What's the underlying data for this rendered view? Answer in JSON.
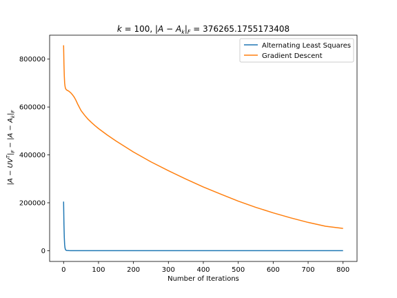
{
  "chart_data": {
    "type": "line",
    "title": "k = 100, |A − A_k|_F = 376265.1755173408",
    "title_parts": {
      "k_label": "k",
      "k_value": "100",
      "norm_label": "|A − A",
      "norm_sub": "k",
      "norm_tail": "|",
      "norm_sub2": "F",
      "norm_value": "376265.1755173408"
    },
    "xlabel": "Number of Iterations",
    "ylabel_parts": {
      "a": "|A − UV",
      "sup": "T",
      "b": "|",
      "sub1": "F",
      "c": " − |A − A",
      "sub2": "k",
      "d": "|",
      "sub3": "F"
    },
    "xlim": [
      -40,
      840
    ],
    "ylim": [
      -45000,
      900000
    ],
    "xticks": [
      0,
      100,
      200,
      300,
      400,
      500,
      600,
      700,
      800
    ],
    "yticks": [
      0,
      200000,
      400000,
      600000,
      800000
    ],
    "legend_position": "upper right",
    "grid": false,
    "series": [
      {
        "name": "Alternating Least Squares",
        "color": "#1f77b4",
        "x": [
          0,
          1,
          2,
          3,
          4,
          5,
          6,
          8,
          10,
          15,
          20,
          30,
          50,
          100,
          200,
          300,
          400,
          500,
          600,
          700,
          800
        ],
        "y": [
          205000,
          110000,
          55000,
          25000,
          12000,
          6000,
          3000,
          1200,
          600,
          200,
          80,
          30,
          15,
          10,
          8,
          7,
          6,
          5,
          5,
          4,
          4
        ]
      },
      {
        "name": "Gradient Descent",
        "color": "#ff7f0e",
        "x": [
          0,
          1,
          2,
          3,
          4,
          5,
          6,
          8,
          10,
          15,
          20,
          25,
          30,
          35,
          40,
          50,
          60,
          70,
          80,
          90,
          100,
          125,
          150,
          175,
          200,
          250,
          300,
          350,
          400,
          450,
          500,
          550,
          600,
          650,
          700,
          750,
          800
        ],
        "y": [
          858000,
          780000,
          730000,
          700000,
          688000,
          680000,
          676000,
          672000,
          670000,
          666000,
          660000,
          652000,
          642000,
          629000,
          613000,
          585000,
          566000,
          549000,
          535000,
          522000,
          510000,
          483000,
          458000,
          435000,
          412000,
          371000,
          334000,
          299000,
          266000,
          236000,
          207000,
          181000,
          158000,
          137000,
          118000,
          102000,
          93000
        ]
      }
    ]
  }
}
